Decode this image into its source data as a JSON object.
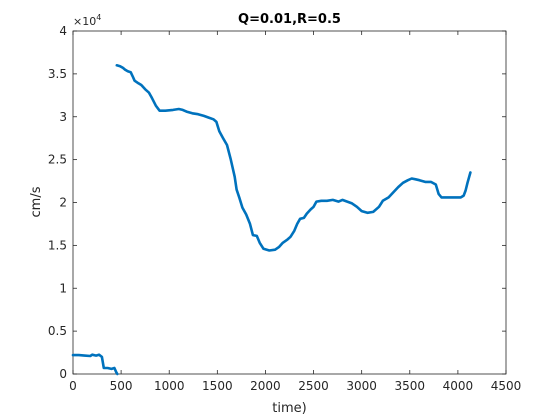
{
  "chart_data": {
    "type": "line",
    "title": "Q=0.01,R=0.5",
    "xlabel": "time)",
    "ylabel": "cm/s",
    "xlim": [
      0,
      4500
    ],
    "ylim": [
      0,
      40000
    ],
    "y_multiplier_label": "×10",
    "y_multiplier_exponent": "4",
    "xticks": [
      0,
      500,
      1000,
      1500,
      2000,
      2500,
      3000,
      3500,
      4000,
      4500
    ],
    "xtick_labels": [
      "0",
      "500",
      "1000",
      "1500",
      "2000",
      "2500",
      "3000",
      "3500",
      "4000",
      "4500"
    ],
    "yticks": [
      0,
      5000,
      10000,
      15000,
      20000,
      25000,
      30000,
      35000,
      40000
    ],
    "ytick_labels": [
      "0",
      "0.5",
      "1",
      "1.5",
      "2",
      "2.5",
      "3",
      "3.5",
      "4"
    ],
    "grid": false,
    "series_color": "#0072BD",
    "series": [
      {
        "segments": [
          [
            [
              0,
              2200
            ],
            [
              60,
              2200
            ],
            [
              120,
              2150
            ],
            [
              180,
              2100
            ],
            [
              200,
              2250
            ],
            [
              240,
              2150
            ],
            [
              270,
              2250
            ],
            [
              300,
              2000
            ],
            [
              320,
              700
            ],
            [
              360,
              700
            ],
            [
              400,
              600
            ],
            [
              430,
              700
            ],
            [
              450,
              200
            ],
            [
              460,
              0
            ]
          ],
          [
            [
              455,
              36000
            ],
            [
              490,
              35900
            ],
            [
              520,
              35700
            ],
            [
              540,
              35500
            ],
            [
              570,
              35300
            ],
            [
              600,
              35200
            ],
            [
              620,
              34700
            ],
            [
              640,
              34200
            ],
            [
              680,
              33900
            ],
            [
              710,
              33700
            ],
            [
              750,
              33200
            ],
            [
              790,
              32800
            ],
            [
              820,
              32200
            ],
            [
              860,
              31300
            ],
            [
              900,
              30700
            ],
            [
              960,
              30700
            ],
            [
              1040,
              30800
            ],
            [
              1100,
              30900
            ],
            [
              1140,
              30800
            ],
            [
              1180,
              30600
            ],
            [
              1240,
              30400
            ],
            [
              1300,
              30300
            ],
            [
              1360,
              30100
            ],
            [
              1410,
              29900
            ],
            [
              1460,
              29700
            ],
            [
              1490,
              29400
            ],
            [
              1520,
              28300
            ],
            [
              1560,
              27500
            ],
            [
              1600,
              26700
            ],
            [
              1640,
              25000
            ],
            [
              1680,
              23000
            ],
            [
              1700,
              21500
            ],
            [
              1730,
              20500
            ],
            [
              1760,
              19400
            ],
            [
              1800,
              18600
            ],
            [
              1840,
              17500
            ],
            [
              1870,
              16200
            ],
            [
              1910,
              16100
            ],
            [
              1940,
              15300
            ],
            [
              1980,
              14600
            ],
            [
              2040,
              14400
            ],
            [
              2100,
              14500
            ],
            [
              2140,
              14800
            ],
            [
              2180,
              15300
            ],
            [
              2230,
              15700
            ],
            [
              2260,
              16000
            ],
            [
              2300,
              16700
            ],
            [
              2330,
              17500
            ],
            [
              2360,
              18100
            ],
            [
              2400,
              18200
            ],
            [
              2430,
              18700
            ],
            [
              2470,
              19200
            ],
            [
              2500,
              19500
            ],
            [
              2530,
              20100
            ],
            [
              2580,
              20200
            ],
            [
              2640,
              20200
            ],
            [
              2700,
              20300
            ],
            [
              2760,
              20100
            ],
            [
              2800,
              20300
            ],
            [
              2850,
              20100
            ],
            [
              2900,
              19900
            ],
            [
              2950,
              19500
            ],
            [
              3000,
              19000
            ],
            [
              3060,
              18800
            ],
            [
              3120,
              18900
            ],
            [
              3180,
              19500
            ],
            [
              3220,
              20200
            ],
            [
              3280,
              20600
            ],
            [
              3330,
              21200
            ],
            [
              3380,
              21800
            ],
            [
              3430,
              22300
            ],
            [
              3480,
              22600
            ],
            [
              3520,
              22800
            ],
            [
              3560,
              22700
            ],
            [
              3600,
              22600
            ],
            [
              3660,
              22400
            ],
            [
              3720,
              22400
            ],
            [
              3770,
              22100
            ],
            [
              3800,
              21000
            ],
            [
              3830,
              20600
            ],
            [
              3900,
              20600
            ],
            [
              3980,
              20600
            ],
            [
              4030,
              20600
            ],
            [
              4060,
              20800
            ],
            [
              4080,
              21400
            ],
            [
              4100,
              22300
            ],
            [
              4130,
              23500
            ]
          ]
        ]
      }
    ]
  }
}
